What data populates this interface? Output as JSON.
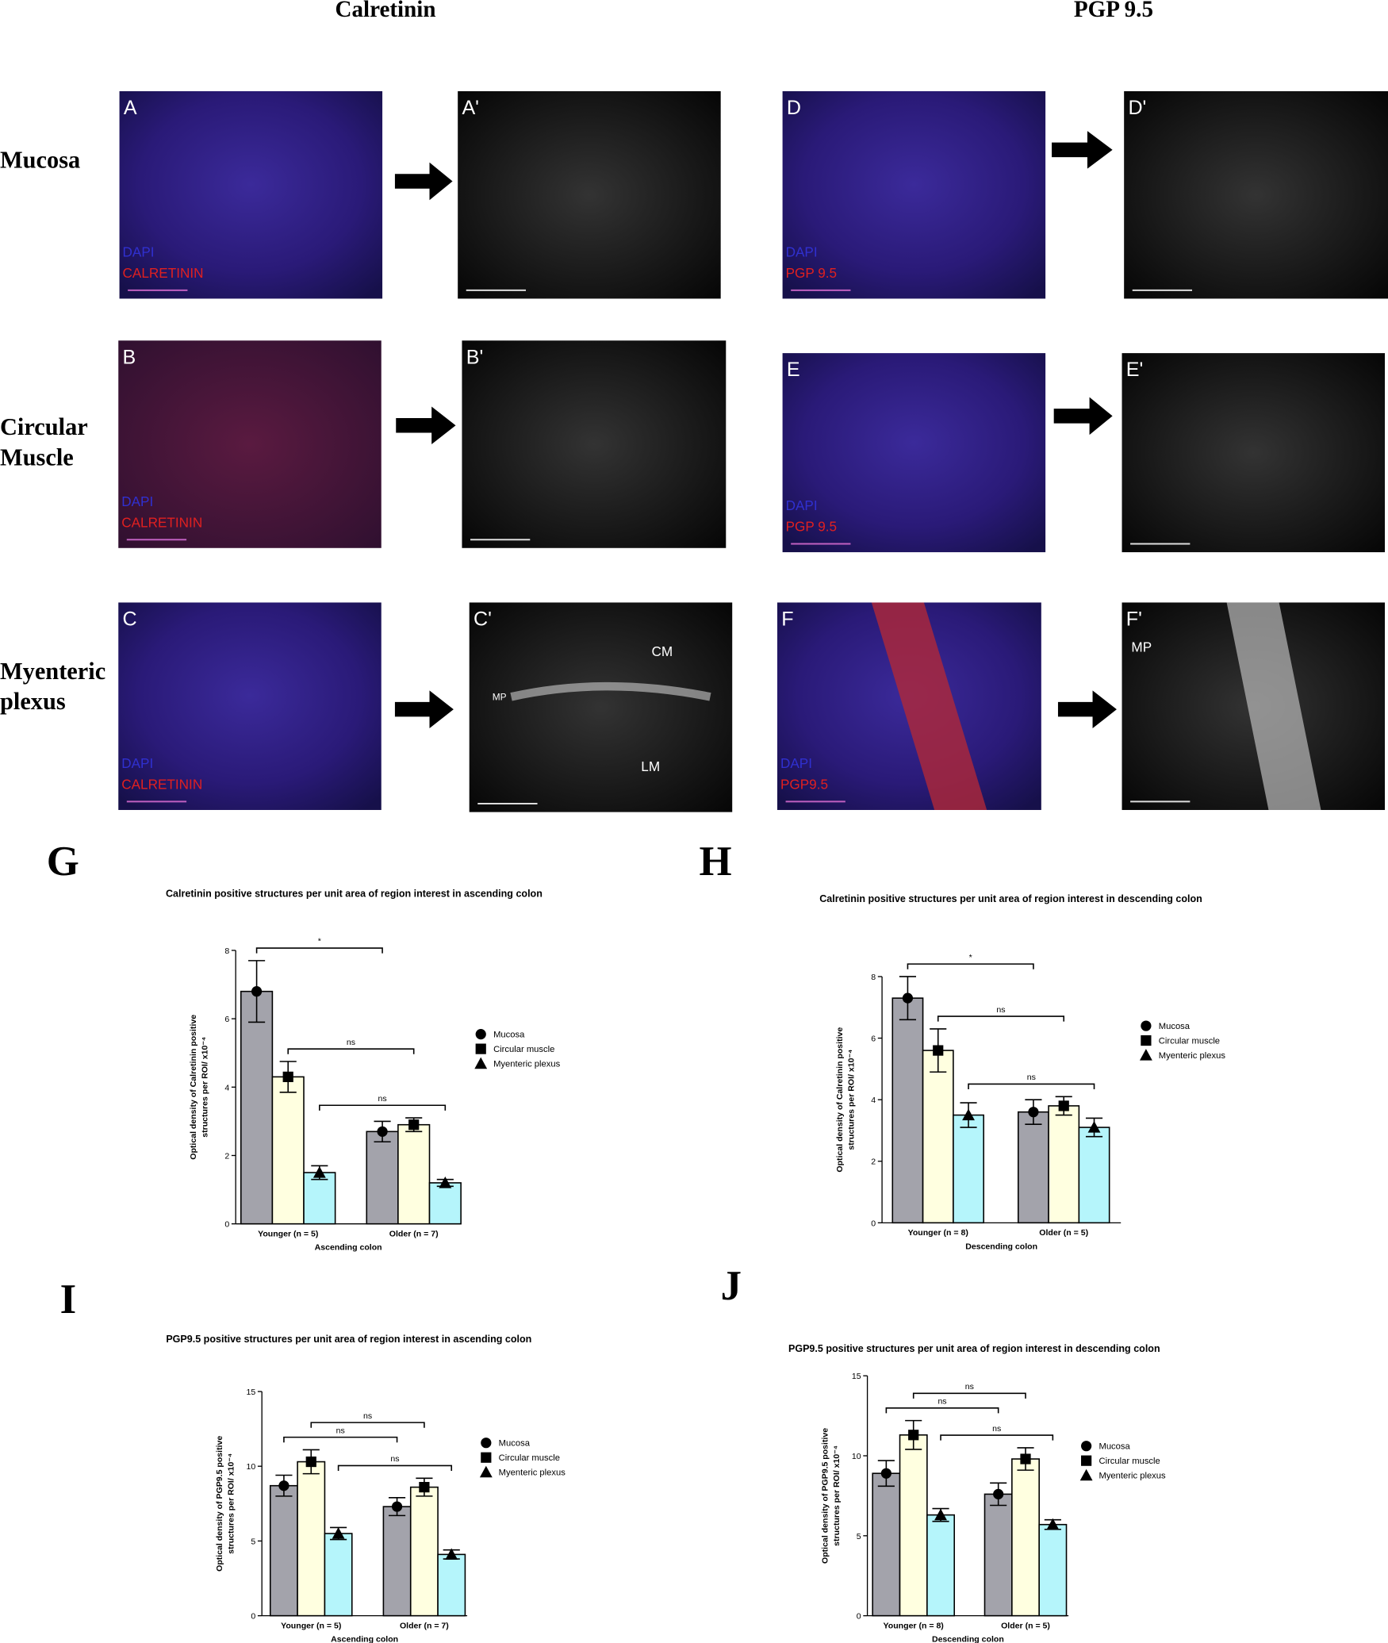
{
  "columns": [
    "Calretinin",
    "PGP 9.5"
  ],
  "rows": [
    [
      "Mucosa"
    ],
    [
      "Circular",
      "Muscle"
    ],
    [
      "Myenteric",
      "plexus"
    ]
  ],
  "panels": [
    {
      "label": "A",
      "stains": [
        "DAPI",
        "CALRETININ"
      ]
    },
    {
      "label": "A'"
    },
    {
      "label": "D",
      "stains": [
        "DAPI",
        "PGP 9.5"
      ]
    },
    {
      "label": "D'"
    },
    {
      "label": "B",
      "stains": [
        "DAPI",
        "CALRETININ"
      ]
    },
    {
      "label": "B'"
    },
    {
      "label": "E",
      "stains": [
        "DAPI",
        "PGP 9.5"
      ]
    },
    {
      "label": "E'"
    },
    {
      "label": "C",
      "stains": [
        "DAPI",
        "CALRETININ"
      ]
    },
    {
      "label": "C'",
      "marks": [
        "CM",
        "MP",
        "LM"
      ]
    },
    {
      "label": "F",
      "stains": [
        "DAPI",
        "PGP9.5"
      ]
    },
    {
      "label": "F'",
      "marks": [
        "MP"
      ]
    }
  ],
  "chart_data": [
    {
      "type": "bar",
      "panel": "G",
      "title": "Calretinin positive structures per unit area of region interest in ascending colon",
      "xlabel": "Ascending colon",
      "ylabel": [
        "Optical density of Calretinin positive",
        "structures per ROI/ x10⁻⁴"
      ],
      "categories": [
        "Younger (n = 5)",
        "Older (n = 7)"
      ],
      "series": [
        {
          "name": "Mucosa",
          "color": "#a3a3ab",
          "marker": "circle",
          "values": [
            6.8,
            2.7
          ],
          "errors": [
            0.9,
            0.3
          ]
        },
        {
          "name": "Circular muscle",
          "color": "#ffffe0",
          "marker": "square",
          "values": [
            4.3,
            2.9
          ],
          "errors": [
            0.45,
            0.2
          ]
        },
        {
          "name": "Myenteric plexus",
          "color": "#b5f5fb",
          "marker": "triangle",
          "values": [
            1.5,
            1.2
          ],
          "errors": [
            0.2,
            0.1
          ]
        }
      ],
      "ylim": [
        0,
        8
      ],
      "yticks": [
        0,
        2,
        4,
        6,
        8
      ],
      "annotations": [
        "*",
        "ns",
        "ns"
      ]
    },
    {
      "type": "bar",
      "panel": "H",
      "title": "Calretinin positive structures per unit area of region interest in descending colon",
      "xlabel": "Descending colon",
      "ylabel": [
        "Optical density of Calretinin positive",
        "structures per ROI/ x10⁻⁴"
      ],
      "categories": [
        "Younger (n = 8)",
        "Older (n = 5)"
      ],
      "series": [
        {
          "name": "Mucosa",
          "color": "#a3a3ab",
          "marker": "circle",
          "values": [
            7.3,
            3.6
          ],
          "errors": [
            0.7,
            0.4
          ]
        },
        {
          "name": "Circular muscle",
          "color": "#ffffe0",
          "marker": "square",
          "values": [
            5.6,
            3.8
          ],
          "errors": [
            0.7,
            0.3
          ]
        },
        {
          "name": "Myenteric plexus",
          "color": "#b5f5fb",
          "marker": "triangle",
          "values": [
            3.5,
            3.1
          ],
          "errors": [
            0.4,
            0.3
          ]
        }
      ],
      "ylim": [
        0,
        8
      ],
      "yticks": [
        0,
        2,
        4,
        6,
        8
      ],
      "annotations": [
        "*",
        "ns",
        "ns"
      ]
    },
    {
      "type": "bar",
      "panel": "I",
      "title": "PGP9.5 positive structures per unit area of region interest in ascending colon",
      "xlabel": "Ascending colon",
      "ylabel": [
        "Optical density of PGP9.5 positive",
        "structures per ROI/ x10⁻⁴"
      ],
      "categories": [
        "Younger (n = 5)",
        "Older (n = 7)"
      ],
      "series": [
        {
          "name": "Mucosa",
          "color": "#a3a3ab",
          "marker": "circle",
          "values": [
            8.7,
            7.3
          ],
          "errors": [
            0.7,
            0.6
          ]
        },
        {
          "name": "Circular muscle",
          "color": "#ffffe0",
          "marker": "square",
          "values": [
            10.3,
            8.6
          ],
          "errors": [
            0.8,
            0.6
          ]
        },
        {
          "name": "Myenteric plexus",
          "color": "#b5f5fb",
          "marker": "triangle",
          "values": [
            5.5,
            4.1
          ],
          "errors": [
            0.4,
            0.3
          ]
        }
      ],
      "ylim": [
        0,
        15
      ],
      "yticks": [
        0,
        5,
        10,
        15
      ],
      "annotations": [
        "ns",
        "ns",
        "ns"
      ]
    },
    {
      "type": "bar",
      "panel": "J",
      "title": "PGP9.5 positive structures per unit area of region interest in descending colon",
      "xlabel": "Descending colon",
      "ylabel": [
        "Optical density of PGP9.5 positive",
        "structures per ROI/ x10⁻⁴"
      ],
      "categories": [
        "Younger (n = 8)",
        "Older (n = 5)"
      ],
      "series": [
        {
          "name": "Mucosa",
          "color": "#a3a3ab",
          "marker": "circle",
          "values": [
            8.9,
            7.6
          ],
          "errors": [
            0.8,
            0.7
          ]
        },
        {
          "name": "Circular muscle",
          "color": "#ffffe0",
          "marker": "square",
          "values": [
            11.3,
            9.8
          ],
          "errors": [
            0.9,
            0.7
          ]
        },
        {
          "name": "Myenteric plexus",
          "color": "#b5f5fb",
          "marker": "triangle",
          "values": [
            6.3,
            5.7
          ],
          "errors": [
            0.4,
            0.3
          ]
        }
      ],
      "ylim": [
        0,
        15
      ],
      "yticks": [
        0,
        5,
        10,
        15
      ],
      "annotations": [
        "ns",
        "ns",
        "ns"
      ]
    }
  ]
}
